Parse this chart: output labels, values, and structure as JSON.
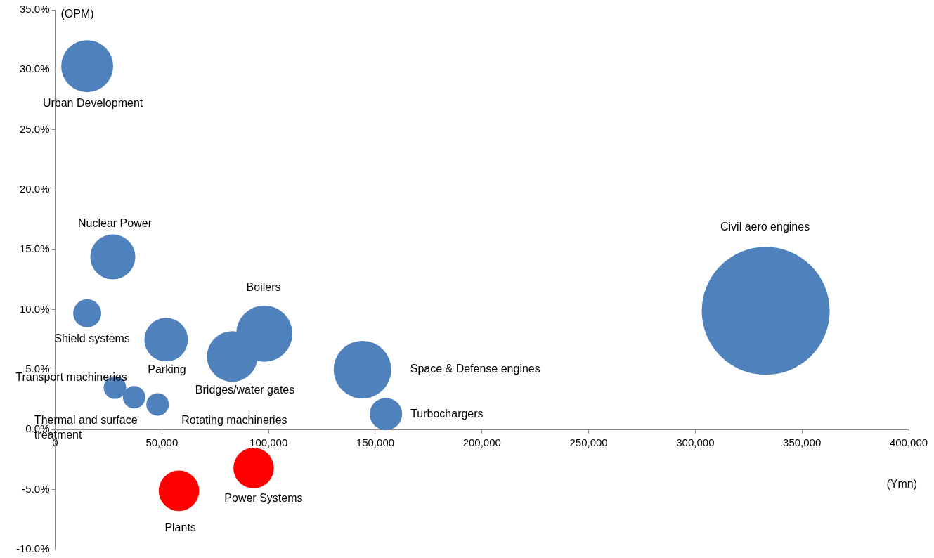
{
  "chart_data": {
    "type": "bubble",
    "xlabel": "(Ymn)",
    "ylabel": "(OPM)",
    "xlim": [
      0,
      400000
    ],
    "xticks": [
      0,
      {
        "value": 50000,
        "label": "50,000"
      },
      {
        "value": 100000,
        "label": "100,000"
      },
      {
        "value": 150000,
        "label": "150,000"
      },
      {
        "value": 200000,
        "label": "200,000"
      },
      {
        "value": 250000,
        "label": "250,000"
      },
      {
        "value": 300000,
        "label": "300,000"
      },
      {
        "value": 350000,
        "label": "350,000"
      },
      {
        "value": 400000,
        "label": "400,000"
      }
    ],
    "ylim": [
      -10,
      35
    ],
    "yticks": [
      {
        "value": -10,
        "label": "-10.0%"
      },
      {
        "value": -5,
        "label": "-5.0%"
      },
      {
        "value": 0,
        "label": "0.0%"
      },
      {
        "value": 5,
        "label": "5.0%"
      },
      {
        "value": 10,
        "label": "10.0%"
      },
      {
        "value": 15,
        "label": "15.0%"
      },
      {
        "value": 20,
        "label": "20.0%"
      },
      {
        "value": 25,
        "label": "25.0%"
      },
      {
        "value": 30,
        "label": "30.0%"
      },
      {
        "value": 35,
        "label": "35.0%"
      }
    ],
    "legend": false,
    "series": [
      {
        "name": "Urban Development",
        "color": "#4f81bd",
        "x": [
          15000
        ],
        "values": [
          30.3
        ],
        "sizes": [
          0.165
        ]
      },
      {
        "name": "Nuclear Power",
        "color": "#4f81bd",
        "x": [
          27000
        ],
        "values": [
          14.4
        ],
        "sizes": [
          0.124
        ]
      },
      {
        "name": "Shield systems",
        "color": "#4f81bd",
        "x": [
          15000
        ],
        "values": [
          9.7
        ],
        "sizes": [
          0.048
        ]
      },
      {
        "name": "Parking",
        "color": "#4f81bd",
        "x": [
          52000
        ],
        "values": [
          7.5
        ],
        "sizes": [
          0.116
        ]
      },
      {
        "name": "Boilers",
        "color": "#4f81bd",
        "x": [
          98000
        ],
        "values": [
          8.0
        ],
        "sizes": [
          0.193
        ]
      },
      {
        "name": "Bridges/water gates",
        "color": "#4f81bd",
        "x": [
          83000
        ],
        "values": [
          6.1
        ],
        "sizes": [
          0.157
        ]
      },
      {
        "name": "Space & Defense engines",
        "color": "#4f81bd",
        "x": [
          144000
        ],
        "values": [
          5.0
        ],
        "sizes": [
          0.203
        ]
      },
      {
        "name": "Turbochargers",
        "color": "#4f81bd",
        "x": [
          155000
        ],
        "values": [
          1.3
        ],
        "sizes": [
          0.064
        ]
      },
      {
        "name": "Civil aero engines",
        "color": "#4f81bd",
        "x": [
          333000
        ],
        "values": [
          9.9
        ],
        "sizes": [
          1
        ]
      },
      {
        "name": "Transport machineries",
        "color": "#4f81bd",
        "x": [
          28000
        ],
        "values": [
          3.5
        ],
        "sizes": [
          0.031
        ]
      },
      {
        "name": "Thermal and surface treatment",
        "color": "#4f81bd",
        "x": [
          37000
        ],
        "values": [
          2.7
        ],
        "sizes": [
          0.031
        ]
      },
      {
        "name": "Rotating machineries",
        "color": "#4f81bd",
        "x": [
          48000
        ],
        "values": [
          2.1
        ],
        "sizes": [
          0.031
        ]
      },
      {
        "name": "Plants",
        "color": "#ff0000",
        "x": [
          58000
        ],
        "values": [
          -5.1
        ],
        "sizes": [
          0.1
        ]
      },
      {
        "name": "Power Systems",
        "color": "#ff0000",
        "x": [
          93000
        ],
        "values": [
          -3.2
        ],
        "sizes": [
          0.1
        ]
      }
    ]
  }
}
